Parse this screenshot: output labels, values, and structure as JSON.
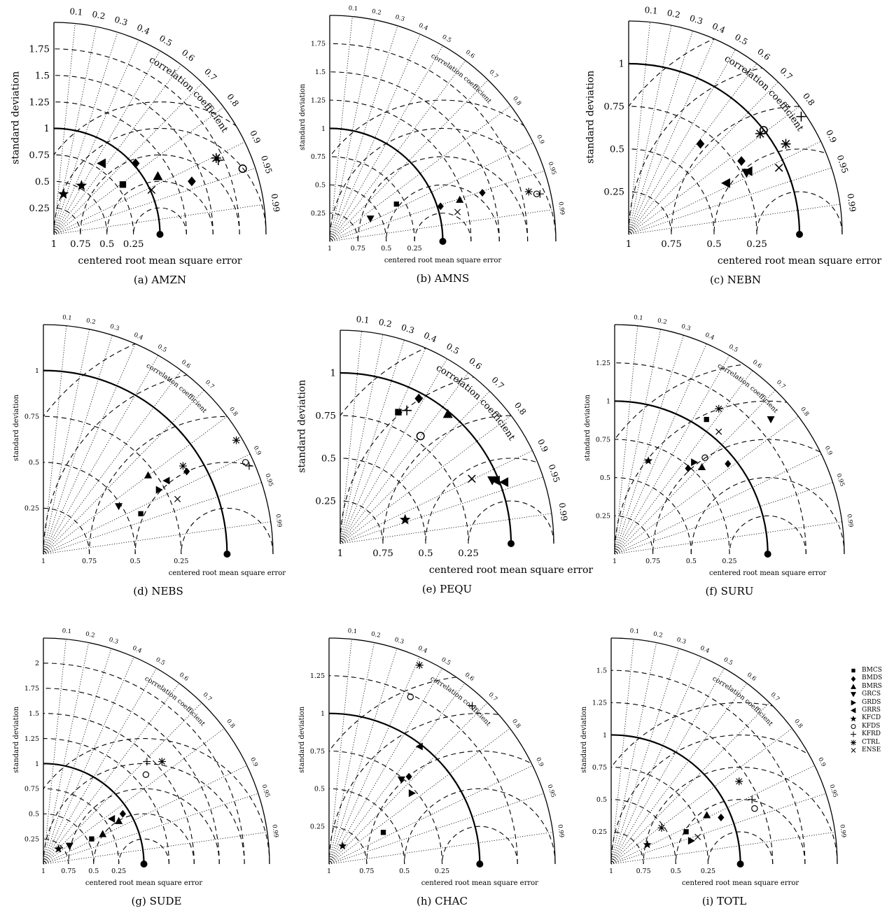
{
  "figure": {
    "x_axis_label": "centered root mean square error",
    "y_axis_label": "standard deviation",
    "arc_label": "correlation coefficient",
    "rms_tick_labels": [
      "1",
      "0.75",
      "0.5",
      "0.25"
    ],
    "correlation_ticks": [
      "0.1",
      "0.2",
      "0.3",
      "0.4",
      "0.5",
      "0.6",
      "0.7",
      "0.8",
      "0.9",
      "0.95",
      "0.99"
    ]
  },
  "legend": [
    {
      "name": "BMCS",
      "marker": "square"
    },
    {
      "name": "BMDS",
      "marker": "diamond"
    },
    {
      "name": "BMRS",
      "marker": "triangle-up"
    },
    {
      "name": "GRCS",
      "marker": "triangle-down"
    },
    {
      "name": "GRDS",
      "marker": "triangle-right"
    },
    {
      "name": "GRRS",
      "marker": "triangle-left"
    },
    {
      "name": "KFCD",
      "marker": "star"
    },
    {
      "name": "KFDS",
      "marker": "circle"
    },
    {
      "name": "KFRD",
      "marker": "plus"
    },
    {
      "name": "CTRL",
      "marker": "asterisk"
    },
    {
      "name": "ENSE",
      "marker": "cross"
    }
  ],
  "chart_data": [
    {
      "type": "scatter",
      "caption": "(a) AMZN",
      "std_ticks": [
        "0.25",
        "0.5",
        "0.75",
        "1",
        "1.25",
        "1.5",
        "1.75"
      ],
      "std_max": 2.0,
      "points": [
        {
          "series": "BMCS",
          "x": 0.65,
          "y": 0.47
        },
        {
          "series": "BMDS",
          "x": 1.3,
          "y": 0.5
        },
        {
          "series": "BMDS",
          "x": 0.77,
          "y": 0.67
        },
        {
          "series": "BMRS",
          "x": 0.98,
          "y": 0.55
        },
        {
          "series": "GRRS",
          "x": 0.45,
          "y": 0.67
        },
        {
          "series": "KFCD",
          "x": 0.09,
          "y": 0.38
        },
        {
          "series": "KFCD",
          "x": 0.26,
          "y": 0.46
        },
        {
          "series": "KFDS",
          "x": 1.78,
          "y": 0.62
        },
        {
          "series": "KFRD",
          "x": 1.55,
          "y": 0.7
        },
        {
          "series": "CTRL",
          "x": 1.53,
          "y": 0.72
        },
        {
          "series": "ENSE",
          "x": 0.92,
          "y": 0.42
        }
      ]
    },
    {
      "type": "scatter",
      "caption": "(b) AMNS",
      "std_ticks": [
        "0.25",
        "0.5",
        "0.75",
        "1",
        "1.25",
        "1.5",
        "1.75"
      ],
      "std_max": 2.0,
      "points": [
        {
          "series": "BMCS",
          "x": 0.59,
          "y": 0.33
        },
        {
          "series": "BMDS",
          "x": 1.35,
          "y": 0.43
        },
        {
          "series": "BMDS",
          "x": 0.98,
          "y": 0.31
        },
        {
          "series": "BMRS",
          "x": 1.15,
          "y": 0.37
        },
        {
          "series": "GRCS",
          "x": 0.36,
          "y": 0.2
        },
        {
          "series": "KFDS",
          "x": 1.83,
          "y": 0.42
        },
        {
          "series": "KFRD",
          "x": 1.86,
          "y": 0.42
        },
        {
          "series": "CTRL",
          "x": 1.76,
          "y": 0.44
        },
        {
          "series": "ENSE",
          "x": 1.13,
          "y": 0.26
        }
      ]
    },
    {
      "type": "scatter",
      "caption": "(c) NEBN",
      "std_ticks": [
        "0.25",
        "0.5",
        "0.75",
        "1"
      ],
      "std_max": 1.25,
      "points": [
        {
          "series": "BMDS",
          "x": 0.66,
          "y": 0.43
        },
        {
          "series": "BMDS",
          "x": 0.42,
          "y": 0.53
        },
        {
          "series": "GRCS",
          "x": 0.69,
          "y": 0.36
        },
        {
          "series": "GRRS",
          "x": 0.7,
          "y": 0.37
        },
        {
          "series": "GRRS",
          "x": 0.57,
          "y": 0.3
        },
        {
          "series": "KFDS",
          "x": 0.79,
          "y": 0.61
        },
        {
          "series": "KFRD",
          "x": 1.01,
          "y": 0.69
        },
        {
          "series": "CTRL",
          "x": 0.77,
          "y": 0.59
        },
        {
          "series": "CTRL",
          "x": 0.92,
          "y": 0.53
        },
        {
          "series": "ENSE",
          "x": 0.88,
          "y": 0.39
        }
      ]
    },
    {
      "type": "scatter",
      "caption": "(d) NEBS",
      "std_ticks": [
        "0.25",
        "0.5",
        "0.75",
        "1"
      ],
      "std_max": 1.25,
      "points": [
        {
          "series": "BMCS",
          "x": 0.53,
          "y": 0.22
        },
        {
          "series": "BMDS",
          "x": 0.78,
          "y": 0.45
        },
        {
          "series": "BMRS",
          "x": 0.57,
          "y": 0.43
        },
        {
          "series": "GRCS",
          "x": 0.41,
          "y": 0.26
        },
        {
          "series": "GRDS",
          "x": 0.63,
          "y": 0.35
        },
        {
          "series": "GRRS",
          "x": 0.67,
          "y": 0.4
        },
        {
          "series": "KFDS",
          "x": 1.1,
          "y": 0.5
        },
        {
          "series": "KFRD",
          "x": 1.12,
          "y": 0.48
        },
        {
          "series": "CTRL",
          "x": 0.76,
          "y": 0.48
        },
        {
          "series": "CTRL",
          "x": 1.05,
          "y": 0.62
        },
        {
          "series": "ENSE",
          "x": 0.73,
          "y": 0.3
        }
      ]
    },
    {
      "type": "scatter",
      "caption": "(e) PEQU",
      "std_ticks": [
        "0.25",
        "0.5",
        "0.75",
        "1"
      ],
      "std_max": 1.25,
      "points": [
        {
          "series": "BMCS",
          "x": 0.34,
          "y": 0.77
        },
        {
          "series": "BMDS",
          "x": 0.46,
          "y": 0.85
        },
        {
          "series": "BMRS",
          "x": 0.63,
          "y": 0.76
        },
        {
          "series": "GRCS",
          "x": 0.89,
          "y": 0.37
        },
        {
          "series": "GRRS",
          "x": 0.96,
          "y": 0.36
        },
        {
          "series": "GRRS",
          "x": 0.91,
          "y": 0.37
        },
        {
          "series": "KFCD",
          "x": 0.38,
          "y": 0.14
        },
        {
          "series": "KFDS",
          "x": 0.47,
          "y": 0.63
        },
        {
          "series": "KFRD",
          "x": 0.39,
          "y": 0.78
        },
        {
          "series": "ENSE",
          "x": 0.77,
          "y": 0.38
        }
      ]
    },
    {
      "type": "scatter",
      "caption": "(f) SURU",
      "std_ticks": [
        "0.25",
        "0.5",
        "0.75",
        "1",
        "1.25"
      ],
      "std_max": 1.5,
      "points": [
        {
          "series": "BMCS",
          "x": 0.6,
          "y": 0.88
        },
        {
          "series": "BMDS",
          "x": 0.48,
          "y": 0.56
        },
        {
          "series": "BMDS",
          "x": 0.74,
          "y": 0.59
        },
        {
          "series": "BMRS",
          "x": 0.57,
          "y": 0.57
        },
        {
          "series": "GRCS",
          "x": 1.02,
          "y": 0.88
        },
        {
          "series": "GRDS",
          "x": 0.52,
          "y": 0.6
        },
        {
          "series": "KFCD",
          "x": 0.22,
          "y": 0.61
        },
        {
          "series": "KFDS",
          "x": 0.59,
          "y": 0.63
        },
        {
          "series": "CTRL",
          "x": 0.68,
          "y": 0.95
        },
        {
          "series": "ENSE",
          "x": 0.68,
          "y": 0.8
        }
      ]
    },
    {
      "type": "scatter",
      "caption": "(g) SUDE",
      "std_ticks": [
        "0.25",
        "0.5",
        "0.75",
        "1",
        "1.25",
        "1.5",
        "1.75",
        "2"
      ],
      "std_max": 2.25,
      "points": [
        {
          "series": "BMCS",
          "x": 0.48,
          "y": 0.25
        },
        {
          "series": "BMDS",
          "x": 0.79,
          "y": 0.5
        },
        {
          "series": "BMRS",
          "x": 0.59,
          "y": 0.3
        },
        {
          "series": "BMRS",
          "x": 0.75,
          "y": 0.43
        },
        {
          "series": "GRCS",
          "x": 0.26,
          "y": 0.18
        },
        {
          "series": "GRRS",
          "x": 0.68,
          "y": 0.45
        },
        {
          "series": "KFCD",
          "x": 0.15,
          "y": 0.15
        },
        {
          "series": "KFDS",
          "x": 1.02,
          "y": 0.89
        },
        {
          "series": "KFRD",
          "x": 1.03,
          "y": 1.02
        },
        {
          "series": "CTRL",
          "x": 1.18,
          "y": 1.02
        }
      ]
    },
    {
      "type": "scatter",
      "caption": "(h) CHAC",
      "std_ticks": [
        "0.25",
        "0.5",
        "0.75",
        "1",
        "1.25"
      ],
      "std_max": 1.5,
      "points": [
        {
          "series": "BMCS",
          "x": 0.36,
          "y": 0.21
        },
        {
          "series": "BMDS",
          "x": 0.53,
          "y": 0.58
        },
        {
          "series": "GRCS",
          "x": 0.48,
          "y": 0.56
        },
        {
          "series": "GRDS",
          "x": 0.55,
          "y": 0.47
        },
        {
          "series": "GRRS",
          "x": 0.6,
          "y": 0.78
        },
        {
          "series": "KFCD",
          "x": 0.09,
          "y": 0.12
        },
        {
          "series": "KFDS",
          "x": 0.54,
          "y": 1.11
        },
        {
          "series": "KFRD",
          "x": 0.95,
          "y": 1.05
        },
        {
          "series": "CTRL",
          "x": 0.6,
          "y": 1.32
        }
      ]
    },
    {
      "type": "scatter",
      "caption": "(i) TOTL",
      "std_ticks": [
        "0.25",
        "0.5",
        "0.75",
        "1",
        "1.25",
        "1.5"
      ],
      "std_max": 1.75,
      "points": [
        {
          "series": "BMCS",
          "x": 0.58,
          "y": 0.25
        },
        {
          "series": "BMDS",
          "x": 0.85,
          "y": 0.36
        },
        {
          "series": "BMRS",
          "x": 0.74,
          "y": 0.38
        },
        {
          "series": "GRDS",
          "x": 0.62,
          "y": 0.18
        },
        {
          "series": "KFCD",
          "x": 0.28,
          "y": 0.15
        },
        {
          "series": "KFDS",
          "x": 1.11,
          "y": 0.43
        },
        {
          "series": "KFRD",
          "x": 1.09,
          "y": 0.5
        },
        {
          "series": "CTRL",
          "x": 0.99,
          "y": 0.64
        },
        {
          "series": "CTRL",
          "x": 0.39,
          "y": 0.28
        },
        {
          "series": "ENSE",
          "x": 0.67,
          "y": 0.21
        }
      ]
    }
  ]
}
